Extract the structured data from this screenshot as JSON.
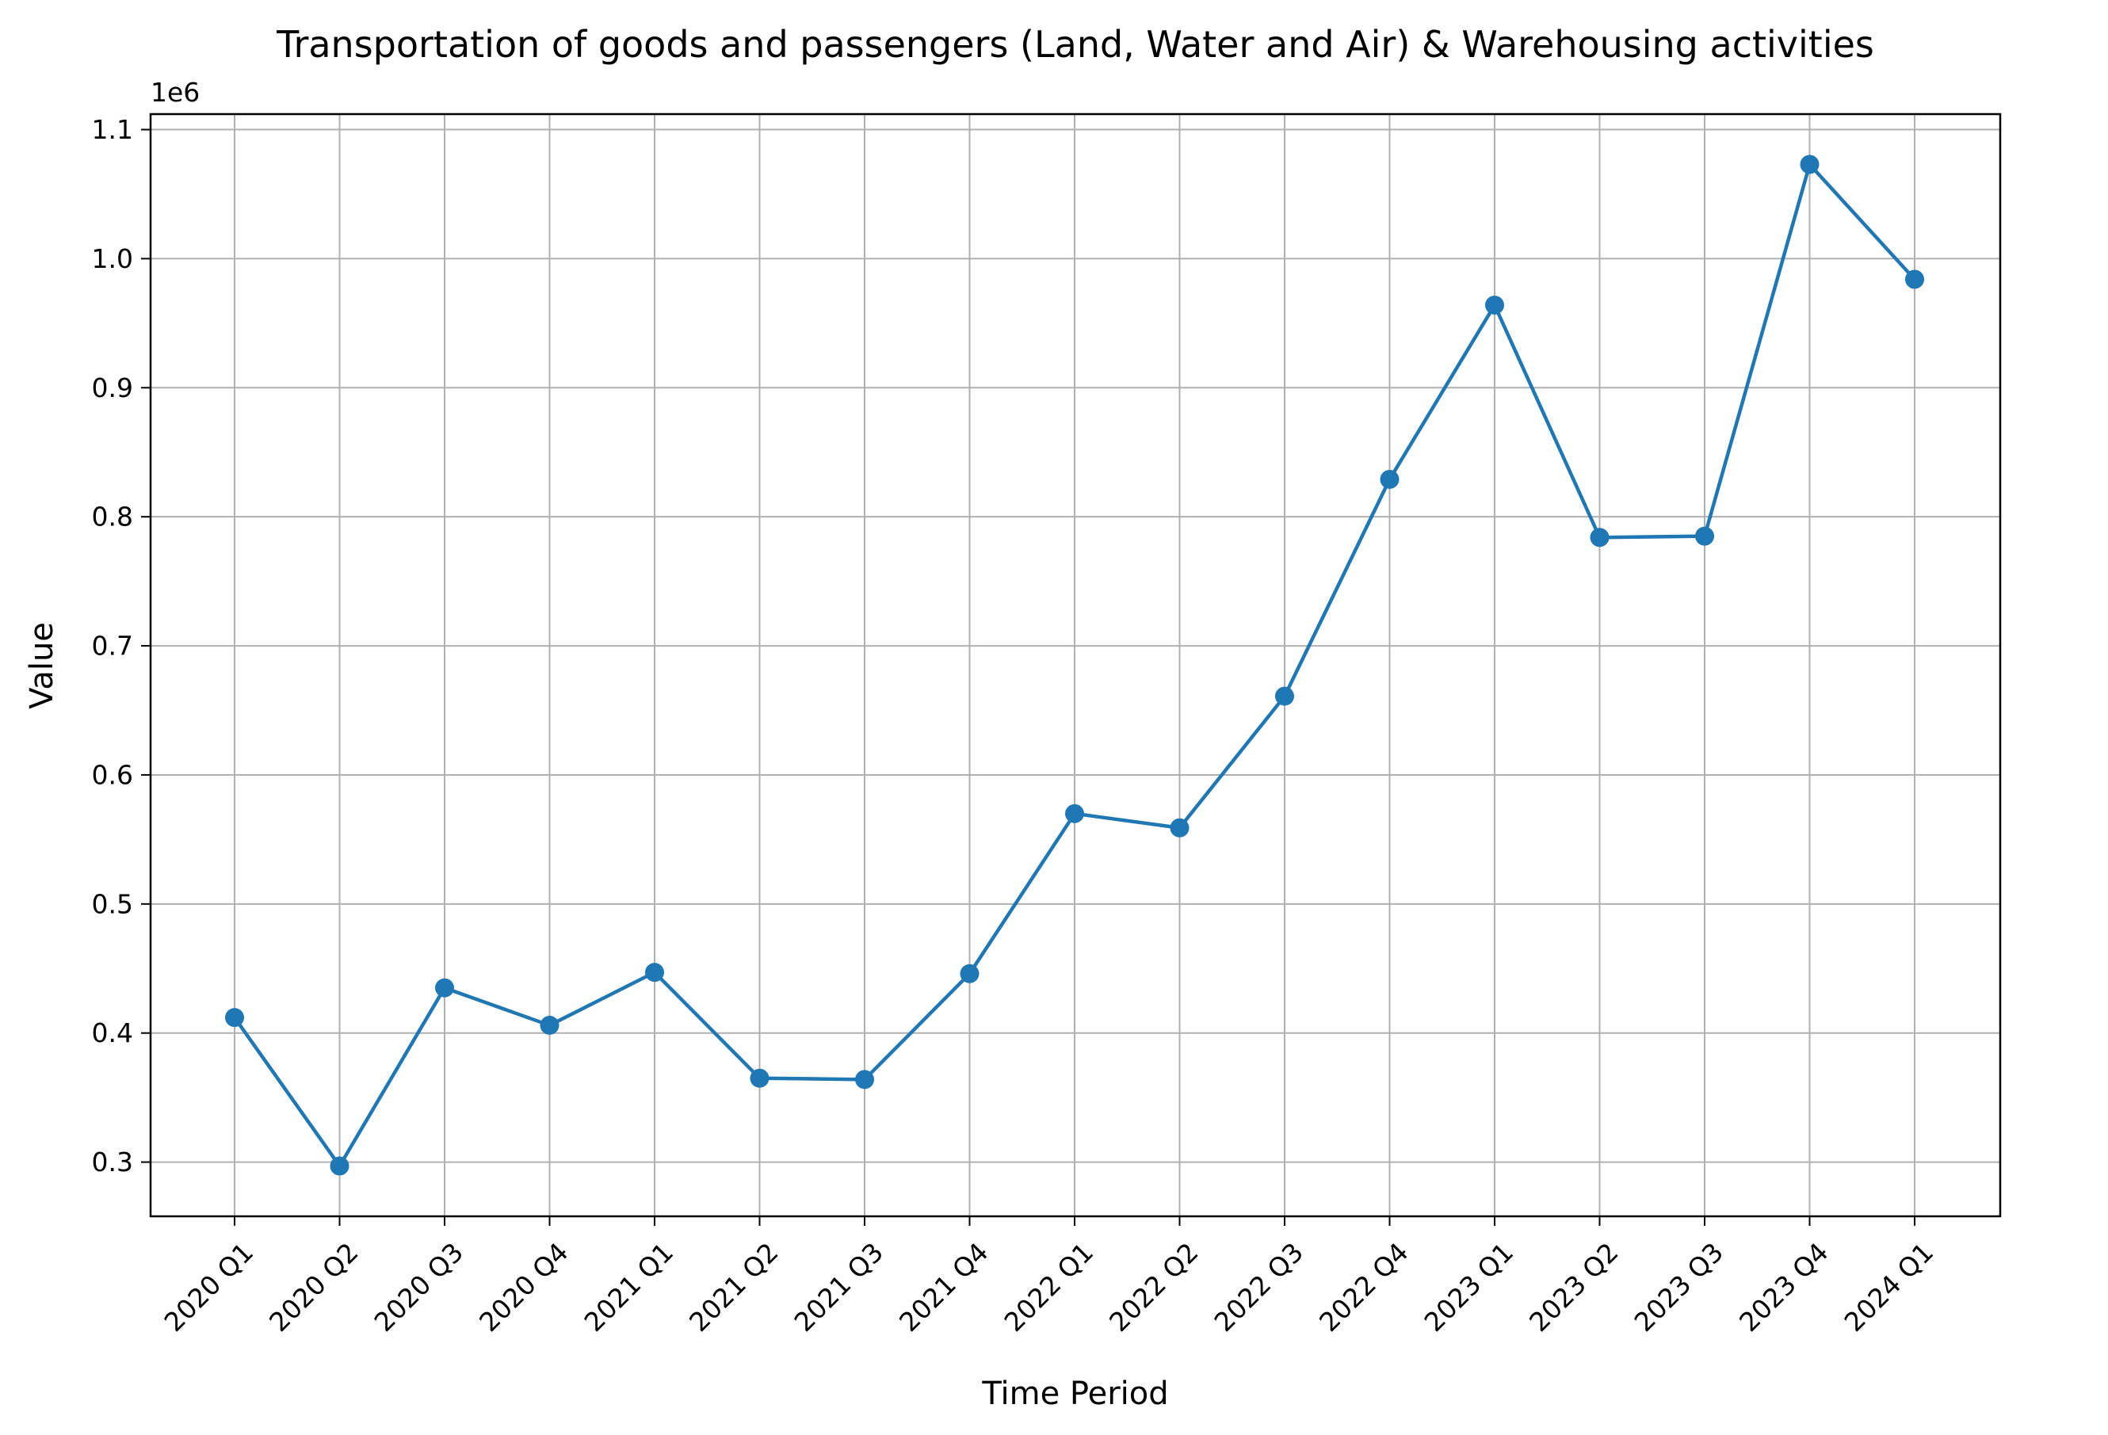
{
  "chart_data": {
    "type": "line",
    "title": "Transportation of goods and passengers (Land, Water and Air) & Warehousing activities",
    "xlabel": "Time Period",
    "ylabel": "Value",
    "y_offset_label": "1e6",
    "categories": [
      "2020 Q1",
      "2020 Q2",
      "2020 Q3",
      "2020 Q4",
      "2021 Q1",
      "2021 Q2",
      "2021 Q3",
      "2021 Q4",
      "2022 Q1",
      "2022 Q2",
      "2022 Q3",
      "2022 Q4",
      "2023 Q1",
      "2023 Q2",
      "2023 Q3",
      "2023 Q4",
      "2024 Q1"
    ],
    "values": [
      412000,
      297000,
      435000,
      406000,
      447000,
      365000,
      364000,
      446000,
      570000,
      559000,
      661000,
      829000,
      964000,
      784000,
      785000,
      1073000,
      984000
    ],
    "ylim": [
      258000,
      1112000
    ],
    "y_ticks": [
      300000,
      400000,
      500000,
      600000,
      700000,
      800000,
      900000,
      1000000,
      1100000
    ],
    "y_tick_labels": [
      "0.3",
      "0.4",
      "0.5",
      "0.6",
      "0.7",
      "0.8",
      "0.9",
      "1.0",
      "1.1"
    ],
    "x_tick_rotation_deg": 45,
    "grid": true,
    "legend": "none",
    "colors": {
      "line": "#1f77b4",
      "grid": "#b0b0b0",
      "axes": "#000000"
    }
  }
}
